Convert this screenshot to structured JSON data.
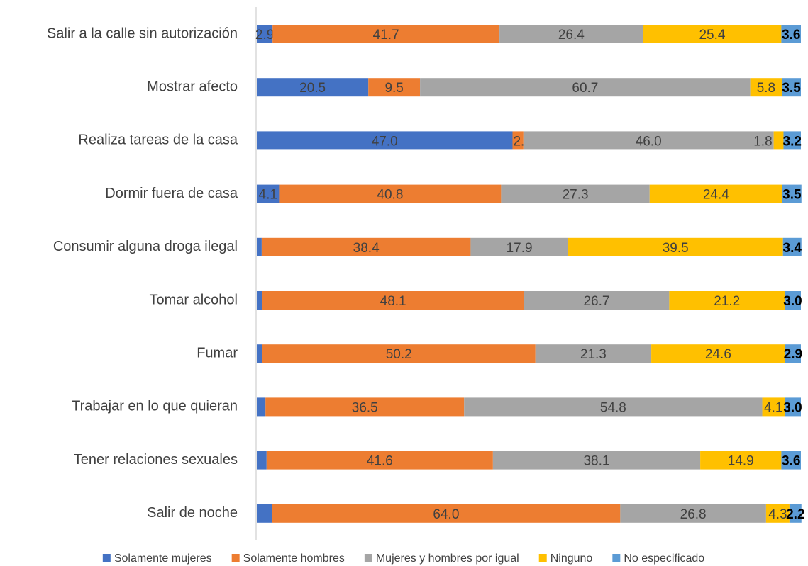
{
  "chart_data": {
    "type": "stacked-barh",
    "categories": [
      "Salir a la calle sin autorización",
      "Mostrar afecto",
      "Realiza tareas de la casa",
      "Dormir fuera de casa",
      "Consumir alguna droga ilegal",
      "Tomar alcohol",
      "Fumar",
      "Trabajar en lo que quieran",
      "Tener relaciones sexuales",
      "Salir de noche"
    ],
    "xlim": [
      0,
      100
    ],
    "series": [
      {
        "name": "Solamente mujeres",
        "color": "#4472c4",
        "values": [
          2.9,
          20.5,
          47.0,
          4.1,
          0.9,
          1.0,
          1.0,
          1.6,
          1.8,
          2.8
        ],
        "value_labels": [
          "2.9",
          "20.5",
          "47.0",
          "4.1",
          "0.9",
          "1.0",
          "1.0",
          "1.6",
          "1.8",
          "2.8"
        ]
      },
      {
        "name": "Solamente hombres",
        "color": "#ed7d31",
        "values": [
          41.7,
          9.5,
          2.0,
          40.8,
          38.4,
          48.1,
          50.2,
          36.5,
          41.6,
          64.0
        ],
        "value_labels": [
          "41.7",
          "9.5",
          "2.0",
          "40.8",
          "38.4",
          "48.1",
          "50.2",
          "36.5",
          "41.6",
          "64.0"
        ]
      },
      {
        "name": "Mujeres y hombres por igual",
        "color": "#a5a5a5",
        "values": [
          26.4,
          60.7,
          46.0,
          27.3,
          17.9,
          26.7,
          21.3,
          54.8,
          38.1,
          26.8
        ],
        "value_labels": [
          "26.4",
          "60.7",
          "46.0",
          "27.3",
          "17.9",
          "26.7",
          "21.3",
          "54.8",
          "38.1",
          "26.8"
        ]
      },
      {
        "name": "Ninguno",
        "color": "#ffc000",
        "values": [
          25.4,
          5.8,
          1.8,
          24.4,
          39.5,
          21.2,
          24.6,
          4.1,
          14.9,
          4.3
        ],
        "value_labels": [
          "25.4",
          "5.8",
          "1.8",
          "24.4",
          "39.5",
          "21.2",
          "24.6",
          "4.1",
          "14.9",
          "4.3"
        ]
      },
      {
        "name": "No especificado",
        "color": "#5b9bd5",
        "values": [
          3.6,
          3.5,
          3.2,
          3.5,
          3.4,
          3.0,
          2.9,
          3.0,
          3.6,
          2.2
        ],
        "value_labels": [
          "3.6",
          "3.5",
          "3.2",
          "3.5",
          "3.4",
          "3.0",
          "2.9",
          "3.0",
          "3.6",
          "2.2"
        ]
      }
    ]
  }
}
